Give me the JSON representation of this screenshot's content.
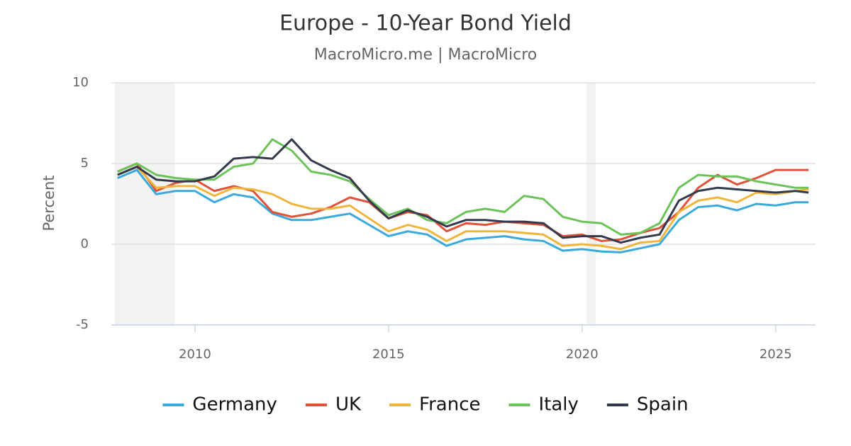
{
  "chart_data": {
    "type": "line",
    "title": "Europe - 10-Year Bond Yield",
    "subtitle": "MacroMicro.me | MacroMicro",
    "y_label": "Percent",
    "x": [
      2008,
      2008.5,
      2009,
      2009.5,
      2010,
      2010.5,
      2011,
      2011.5,
      2012,
      2012.5,
      2013,
      2013.5,
      2014,
      2014.5,
      2015,
      2015.5,
      2016,
      2016.5,
      2017,
      2017.5,
      2018,
      2018.5,
      2019,
      2019.5,
      2020,
      2020.5,
      2021,
      2021.5,
      2022,
      2022.5,
      2023,
      2023.5,
      2024,
      2024.5,
      2025,
      2025.5,
      2025.85
    ],
    "xlim": [
      2007.84,
      2026.03
    ],
    "xticks": [
      2010,
      2015,
      2020,
      2025
    ],
    "ylim": [
      -5,
      10
    ],
    "yticks": [
      -5,
      0,
      5,
      10
    ],
    "grid": true,
    "shaded_ranges": [
      [
        2007.93,
        2009.48
      ],
      [
        2020.11,
        2020.35
      ]
    ],
    "shade_color": "#f2f2f2",
    "series": [
      {
        "name": "Germany",
        "color": "#3ba9dc",
        "values": [
          4.1,
          4.6,
          3.1,
          3.3,
          3.3,
          2.6,
          3.1,
          2.9,
          1.9,
          1.5,
          1.5,
          1.7,
          1.9,
          1.2,
          0.5,
          0.8,
          0.6,
          -0.1,
          0.3,
          0.4,
          0.5,
          0.3,
          0.2,
          -0.4,
          -0.3,
          -0.45,
          -0.5,
          -0.25,
          0.0,
          1.5,
          2.3,
          2.4,
          2.1,
          2.5,
          2.4,
          2.6,
          2.6
        ]
      },
      {
        "name": "UK",
        "color": "#e0533a",
        "values": [
          4.5,
          5.0,
          3.3,
          3.8,
          4.0,
          3.3,
          3.6,
          3.3,
          2.0,
          1.7,
          1.9,
          2.3,
          2.9,
          2.6,
          1.6,
          2.0,
          1.8,
          0.8,
          1.3,
          1.2,
          1.4,
          1.3,
          1.2,
          0.5,
          0.6,
          0.2,
          0.3,
          0.7,
          1.0,
          2.0,
          3.5,
          4.3,
          3.7,
          4.1,
          4.6,
          4.6,
          4.6
        ]
      },
      {
        "name": "France",
        "color": "#f0b53c",
        "values": [
          4.3,
          4.8,
          3.5,
          3.6,
          3.6,
          3.0,
          3.5,
          3.4,
          3.1,
          2.5,
          2.2,
          2.2,
          2.4,
          1.6,
          0.8,
          1.2,
          0.9,
          0.2,
          0.8,
          0.8,
          0.8,
          0.7,
          0.6,
          -0.1,
          0.0,
          -0.1,
          -0.3,
          0.1,
          0.2,
          2.0,
          2.7,
          2.9,
          2.6,
          3.2,
          3.1,
          3.3,
          3.4
        ]
      },
      {
        "name": "Italy",
        "color": "#6cc35a",
        "values": [
          4.5,
          5.0,
          4.3,
          4.1,
          4.0,
          4.0,
          4.8,
          5.0,
          6.5,
          5.8,
          4.5,
          4.3,
          3.9,
          2.8,
          1.8,
          2.2,
          1.5,
          1.3,
          2.0,
          2.2,
          2.0,
          3.0,
          2.8,
          1.7,
          1.4,
          1.3,
          0.6,
          0.7,
          1.3,
          3.5,
          4.3,
          4.2,
          4.2,
          3.9,
          3.7,
          3.5,
          3.5
        ]
      },
      {
        "name": "Spain",
        "color": "#343a4d",
        "values": [
          4.3,
          4.8,
          4.0,
          3.9,
          3.9,
          4.2,
          5.3,
          5.4,
          5.3,
          6.5,
          5.2,
          4.6,
          4.1,
          2.7,
          1.6,
          2.1,
          1.7,
          1.1,
          1.5,
          1.5,
          1.4,
          1.4,
          1.3,
          0.4,
          0.5,
          0.5,
          0.1,
          0.4,
          0.6,
          2.7,
          3.3,
          3.5,
          3.4,
          3.3,
          3.2,
          3.3,
          3.2
        ]
      }
    ]
  }
}
